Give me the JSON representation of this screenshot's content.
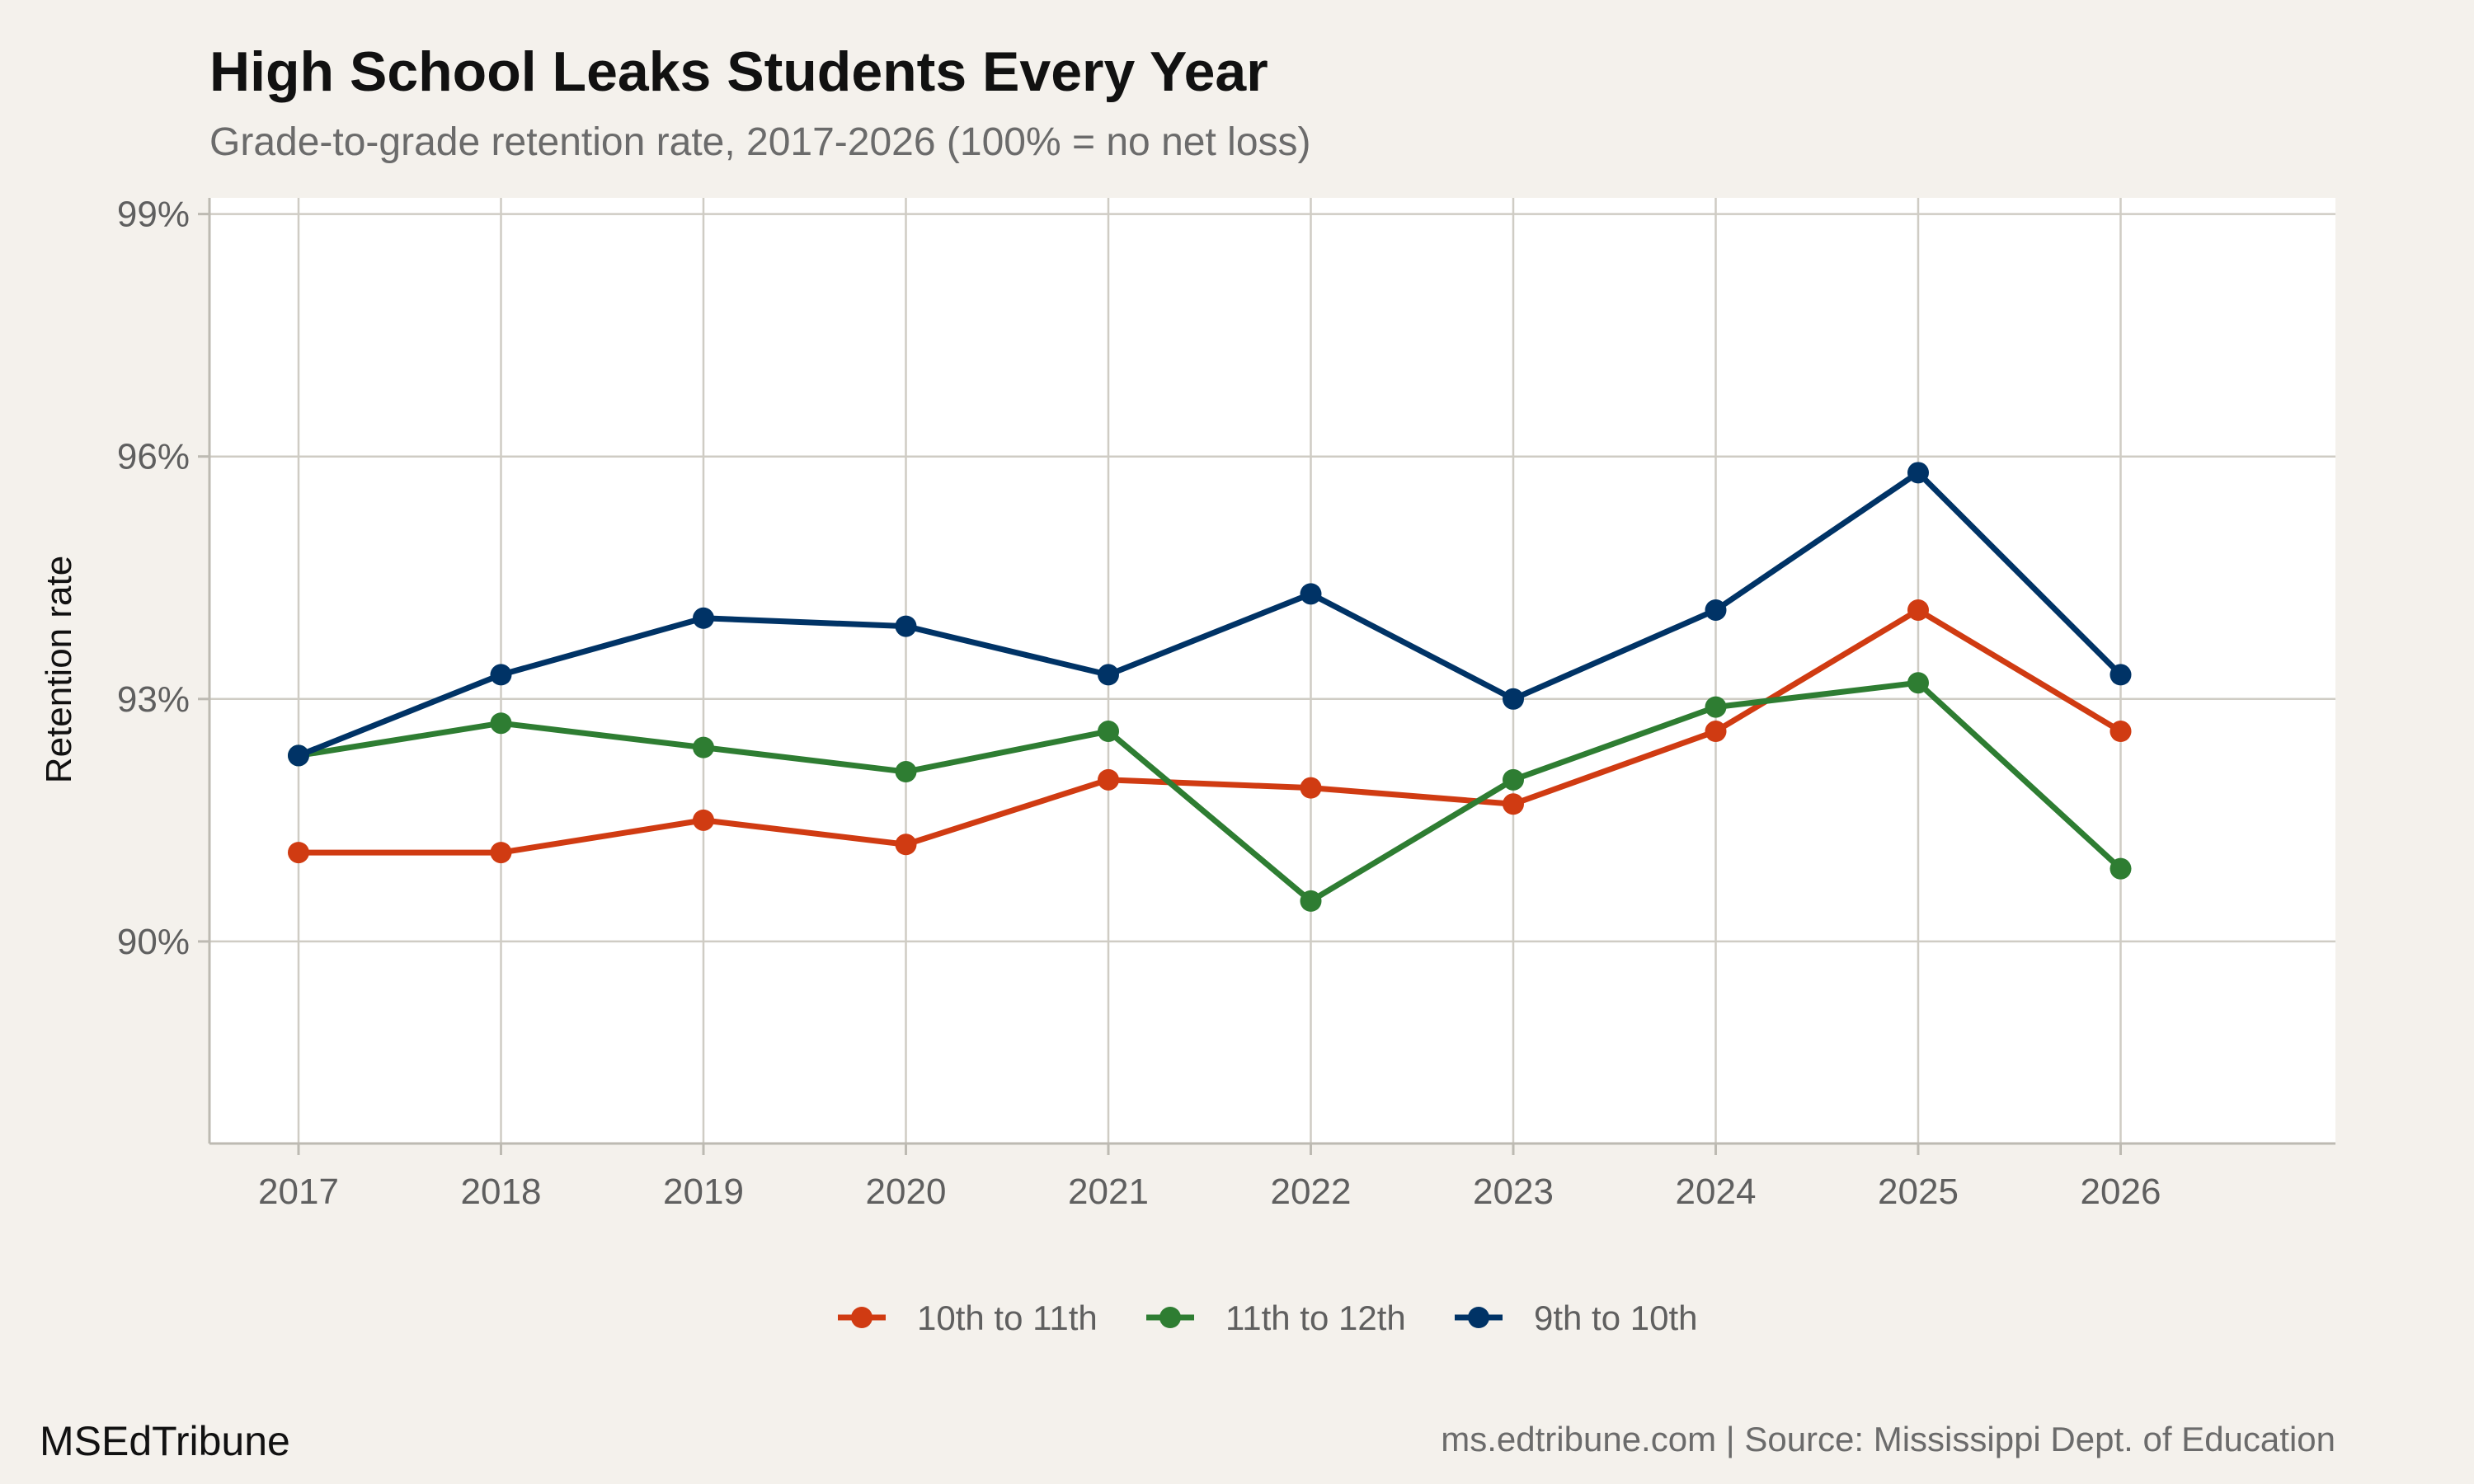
{
  "chart_data": {
    "type": "line",
    "title": "High School Leaks Students Every Year",
    "subtitle": "Grade-to-grade retention rate, 2017-2026 (100% = no net loss)",
    "xlabel": "",
    "ylabel": "Retention rate",
    "x": [
      "2017",
      "2018",
      "2019",
      "2020",
      "2021",
      "2022",
      "2023",
      "2024",
      "2025",
      "2026"
    ],
    "ylim": [
      87.5,
      99.2
    ],
    "yticks": [
      90,
      93,
      96,
      99
    ],
    "ytick_labels": [
      "90%",
      "93%",
      "96%",
      "99%"
    ],
    "grid": true,
    "legend_position": "bottom",
    "series": [
      {
        "name": "10th to 11th",
        "color": "#d03b12",
        "values": [
          91.1,
          91.1,
          91.5,
          91.2,
          92.0,
          91.9,
          91.7,
          92.6,
          94.1,
          92.6
        ]
      },
      {
        "name": "11th to 12th",
        "color": "#2e7d32",
        "values": [
          92.3,
          92.7,
          92.4,
          92.1,
          92.6,
          90.5,
          92.0,
          92.9,
          93.2,
          90.9
        ]
      },
      {
        "name": "9th to 10th",
        "color": "#003366",
        "values": [
          92.3,
          93.3,
          94.0,
          93.9,
          93.3,
          94.3,
          93.0,
          94.1,
          95.8,
          93.3
        ]
      }
    ]
  },
  "footer": {
    "brand": "MSEdTribune",
    "source": "ms.edtribune.com | Source: Mississippi Dept. of Education"
  }
}
